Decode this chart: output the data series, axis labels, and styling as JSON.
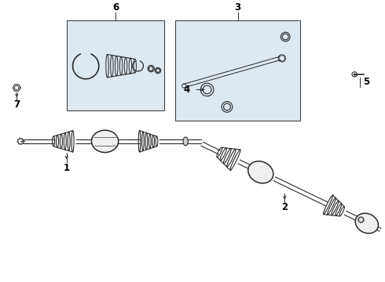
{
  "bg_color": "#ffffff",
  "line_color": "#2a2a2a",
  "box_fill": "#dde8f0",
  "box_border": "#444444",
  "figsize": [
    4.9,
    3.6
  ],
  "dpi": 100,
  "label_fontsize": 8.5
}
